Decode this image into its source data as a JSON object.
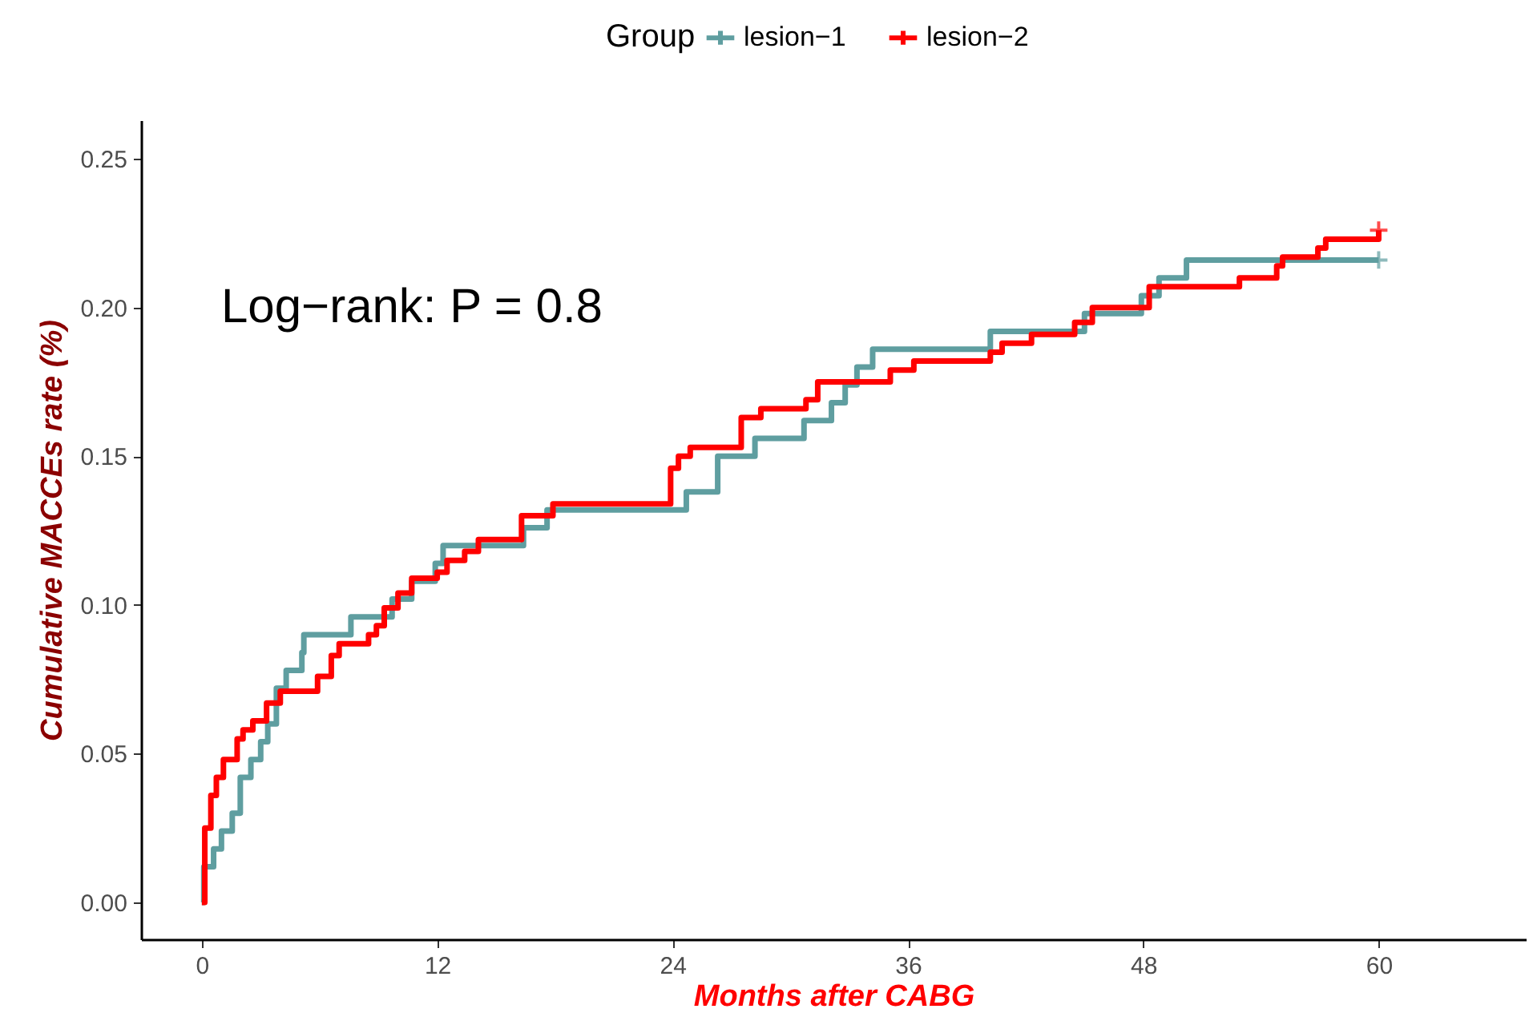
{
  "chart_data": {
    "type": "step",
    "xlabel": "Months after CABG",
    "ylabel": "Cumulative MACCEs rate (%)",
    "legend_title": "Group",
    "legend": "top",
    "grid": false,
    "line_style": "solid",
    "xlim": [
      -3.1,
      67.5
    ],
    "xticks": [
      0,
      12,
      24,
      36,
      48,
      60
    ],
    "ylim": [
      -0.0124,
      0.263
    ],
    "yticks": [
      {
        "value": 0,
        "label": "0.00"
      },
      0.05,
      {
        "value": 0.1,
        "label": "0.10"
      },
      0.15,
      {
        "value": 0.2,
        "label": "0.20"
      },
      0.25
    ],
    "annotations": [
      "Log−rank: P = 0.8"
    ],
    "series": [
      {
        "name": "lesion−1",
        "color": "#5f9ea0",
        "x": [
          0,
          0.1,
          0.6,
          1.0,
          1.55,
          1.96,
          2.5,
          3.0,
          3.36,
          3.8,
          4.3,
          5.1,
          5.2,
          7.6,
          9.7,
          10.7,
          11.9,
          12.3,
          16.4,
          17.6,
          24.7,
          26.3,
          28.2,
          30.7,
          32.1,
          32.8,
          33.4,
          34.2,
          40.2,
          45.0,
          47.9,
          48.8,
          50.2,
          60
        ],
        "values": [
          0.0,
          0.012,
          0.018,
          0.024,
          0.03,
          0.042,
          0.048,
          0.054,
          0.06,
          0.072,
          0.078,
          0.084,
          0.09,
          0.096,
          0.102,
          0.108,
          0.114,
          0.12,
          0.126,
          0.132,
          0.138,
          0.15,
          0.156,
          0.162,
          0.168,
          0.174,
          0.18,
          0.186,
          0.192,
          0.198,
          0.204,
          0.21,
          0.216,
          0.216
        ]
      },
      {
        "name": "lesion−2",
        "color": "#ff0000",
        "x": [
          0,
          0.15,
          0.46,
          0.74,
          1.1,
          1.8,
          2.1,
          2.6,
          3.3,
          4.0,
          5.9,
          6.6,
          7.0,
          8.5,
          8.9,
          9.3,
          10.0,
          10.7,
          12.0,
          12.5,
          13.4,
          14.1,
          16.3,
          17.9,
          23.9,
          24.3,
          24.9,
          27.5,
          28.5,
          30.8,
          31.4,
          35.1,
          36.3,
          40.2,
          40.8,
          42.3,
          44.5,
          45.4,
          48.3,
          52.9,
          54.8,
          55.1,
          56.9,
          57.3,
          60
        ],
        "values": [
          0.0,
          0.025,
          0.036,
          0.042,
          0.048,
          0.055,
          0.058,
          0.061,
          0.067,
          0.071,
          0.076,
          0.083,
          0.087,
          0.09,
          0.093,
          0.099,
          0.104,
          0.109,
          0.111,
          0.115,
          0.118,
          0.122,
          0.13,
          0.134,
          0.146,
          0.15,
          0.153,
          0.163,
          0.166,
          0.169,
          0.175,
          0.179,
          0.182,
          0.185,
          0.188,
          0.191,
          0.195,
          0.2,
          0.207,
          0.21,
          0.214,
          0.217,
          0.22,
          0.223,
          0.226
        ]
      }
    ]
  }
}
